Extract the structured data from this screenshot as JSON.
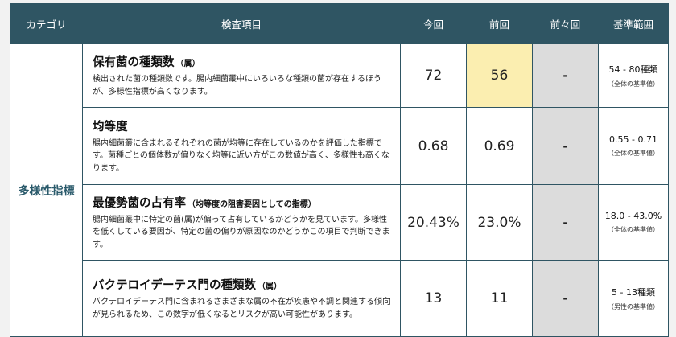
{
  "table": {
    "headers": {
      "category": "カテゴリ",
      "item": "検査項目",
      "current": "今回",
      "previous": "前回",
      "before_previous": "前々回",
      "reference": "基準範囲"
    },
    "category_label": "多様性指標",
    "rows": [
      {
        "title": "保有菌の種類数",
        "title_note": "（属）",
        "description": "検出された菌の種類数です。腸内細菌叢中にいろいろな種類の菌が存在するほうが、多様性指標が高くなります。",
        "current": "72",
        "previous": "56",
        "before_previous": "-",
        "range": "54 - 80種類",
        "range_note": "（全体の基準値）",
        "previous_highlighted": true
      },
      {
        "title": "均等度",
        "title_note": "",
        "description": "腸内細菌叢に含まれるそれぞれの菌が均等に存在しているのかを評価した指標です。菌種ごとの個体数が偏りなく均等に近い方がこの数値が高く、多様性も高くなります。",
        "current": "0.68",
        "previous": "0.69",
        "before_previous": "-",
        "range": "0.55 - 0.71",
        "range_note": "（全体の基準値）",
        "previous_highlighted": false
      },
      {
        "title": "最優勢菌の占有率",
        "title_note": "（均等度の阻害要因としての指標）",
        "description": "腸内細菌叢中に特定の菌(属)が偏って占有しているかどうかを見ています。多様性を低くしている要因が、特定の菌の偏りが原因なのかどうかこの項目で判断できます。",
        "current": "20.43%",
        "previous": "23.0%",
        "before_previous": "-",
        "range": "18.0 - 43.0%",
        "range_note": "（全体の基準値）",
        "previous_highlighted": false
      },
      {
        "title": "バクテロイデーテス門の種類数",
        "title_note": "（属）",
        "description": "バクテロイデーテス門に含まれるさまざまな属の不在が疾患や不調と関連する傾向が見られるため、この数字が低くなるとリスクが高い可能性があります。",
        "current": "13",
        "previous": "11",
        "before_previous": "-",
        "range": "5 - 13種類",
        "range_note": "（男性の基準値）",
        "previous_highlighted": false
      }
    ]
  },
  "colors": {
    "header_bg": "#2f5563",
    "category_text": "#2a5a6b",
    "highlight": "#fbeeb0",
    "empty_cell": "#dcdcdc"
  }
}
